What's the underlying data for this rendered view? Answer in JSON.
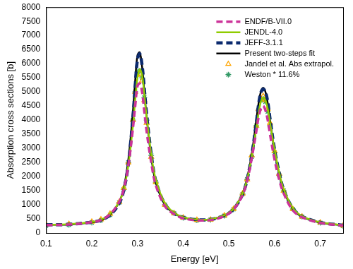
{
  "chart_data": {
    "type": "line",
    "x_label": "Energy [eV]",
    "y_label": "Absorption cross sections [b]",
    "xlim": [
      0.1,
      0.75
    ],
    "xticks": [
      0.1,
      0.2,
      0.3,
      0.4,
      0.5,
      0.6,
      0.7
    ],
    "ylim": [
      0,
      8000
    ],
    "yticks": [
      0,
      500,
      1000,
      1500,
      2000,
      2500,
      3000,
      3500,
      4000,
      4500,
      5000,
      5500,
      6000,
      6500,
      7000,
      7500,
      8000
    ],
    "grid": false,
    "legend": "upper right",
    "x": [
      0.1,
      0.15,
      0.2,
      0.22,
      0.24,
      0.26,
      0.27,
      0.28,
      0.29,
      0.295,
      0.3,
      0.305,
      0.31,
      0.315,
      0.32,
      0.33,
      0.34,
      0.36,
      0.38,
      0.4,
      0.43,
      0.46,
      0.49,
      0.51,
      0.53,
      0.54,
      0.55,
      0.56,
      0.565,
      0.57,
      0.575,
      0.58,
      0.585,
      0.59,
      0.6,
      0.61,
      0.62,
      0.64,
      0.66,
      0.7,
      0.75
    ],
    "series": [
      {
        "name": "ENDF/B-VII.0",
        "color": "#cc3399",
        "line_style": "dashed",
        "marker": "none",
        "values": [
          280,
          300,
          380,
          460,
          660,
          1100,
          1550,
          2400,
          3700,
          4500,
          5200,
          5300,
          5000,
          4300,
          3600,
          2500,
          1700,
          950,
          670,
          520,
          450,
          460,
          600,
          830,
          1350,
          1850,
          2650,
          3600,
          4100,
          4400,
          4500,
          4350,
          4000,
          3500,
          2600,
          1900,
          1400,
          800,
          560,
          360,
          265
        ]
      },
      {
        "name": "JENDL-4.0",
        "color": "#8fcc00",
        "line_style": "solid",
        "marker": "none",
        "values": [
          290,
          310,
          390,
          470,
          670,
          1100,
          1550,
          2400,
          3800,
          4700,
          5500,
          5800,
          5600,
          4900,
          4100,
          2800,
          1900,
          1050,
          720,
          560,
          475,
          490,
          630,
          860,
          1400,
          1900,
          2700,
          3700,
          4250,
          4650,
          4800,
          4700,
          4400,
          3900,
          2950,
          2150,
          1550,
          880,
          600,
          380,
          275
        ]
      },
      {
        "name": "JEFF-3.1.1",
        "color": "#0b2a6e",
        "line_style": "dashed",
        "marker": "none",
        "values": [
          290,
          305,
          385,
          455,
          640,
          1050,
          1520,
          2450,
          4100,
          5200,
          6150,
          6350,
          5950,
          5100,
          4200,
          2800,
          1850,
          1020,
          700,
          555,
          470,
          480,
          620,
          840,
          1370,
          1900,
          2750,
          3900,
          4550,
          4980,
          5100,
          5000,
          4650,
          4050,
          2950,
          2150,
          1530,
          870,
          590,
          375,
          275
        ]
      },
      {
        "name": "Present two-steps fit",
        "color": "#000000",
        "line_style": "solid",
        "marker": "none",
        "values": [
          300,
          300,
          380,
          450,
          650,
          1100,
          1600,
          2600,
          4300,
          5400,
          6300,
          6400,
          5900,
          5000,
          4100,
          2700,
          1800,
          1000,
          700,
          550,
          470,
          480,
          620,
          850,
          1400,
          1950,
          2800,
          4000,
          4600,
          5000,
          5150,
          5000,
          4600,
          4000,
          2900,
          2100,
          1500,
          850,
          580,
          370,
          270
        ]
      },
      {
        "name": "Jandel et al. Abs extrapol.",
        "color": "#ffa500",
        "line_style": "none",
        "marker": "triangle",
        "values": [
          300,
          320,
          400,
          480,
          680,
          1100,
          1600,
          2500,
          4000,
          5000,
          5600,
          5650,
          5400,
          4700,
          3900,
          2700,
          1800,
          1000,
          700,
          540,
          460,
          470,
          620,
          850,
          1400,
          1900,
          2750,
          3800,
          4400,
          4750,
          4850,
          4700,
          4400,
          3900,
          2900,
          2100,
          1500,
          850,
          580,
          370,
          260
        ]
      },
      {
        "name": "Weston * 11.6%",
        "color": "#339966",
        "line_style": "none",
        "marker": "star",
        "values": [
          260,
          290,
          370,
          450,
          640,
          1080,
          1550,
          2500,
          4000,
          5000,
          5700,
          5750,
          5500,
          4800,
          4000,
          2750,
          1800,
          1000,
          700,
          540,
          450,
          470,
          610,
          840,
          1380,
          1900,
          2700,
          3800,
          4350,
          4700,
          4750,
          4650,
          4300,
          3800,
          2850,
          2050,
          1500,
          850,
          580,
          360,
          250
        ]
      }
    ]
  }
}
